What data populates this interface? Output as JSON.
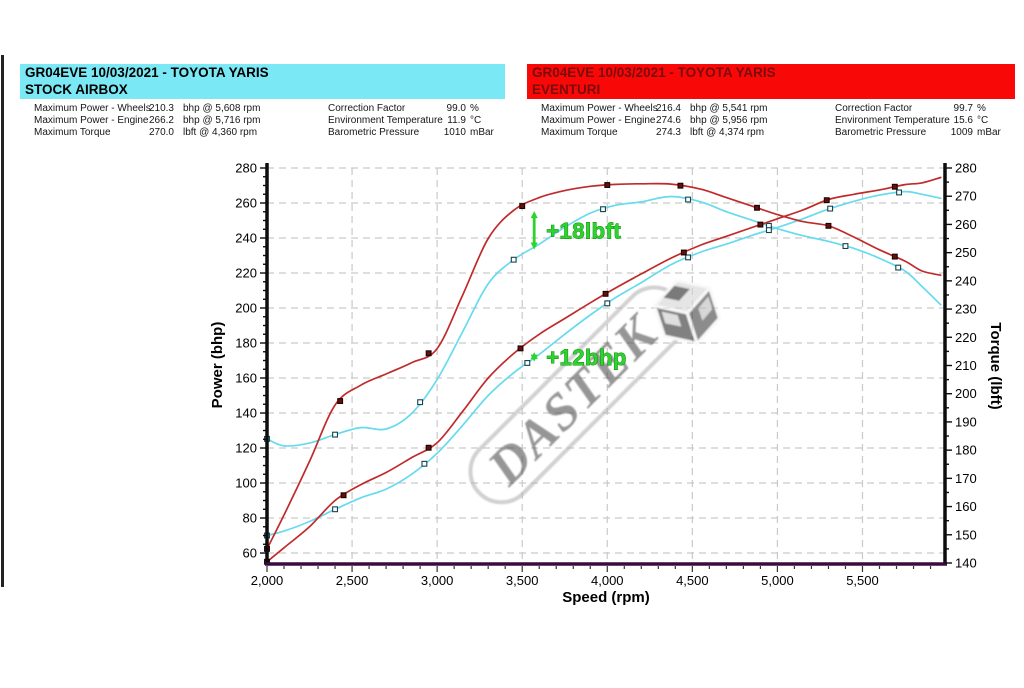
{
  "left_panel": {
    "title_line1": "GR04EVE 10/03/2021 - TOYOTA YARIS",
    "title_line2": "STOCK AIRBOX",
    "header_bg": "#7be8f5",
    "stats": [
      {
        "label": "Maximum Power - Wheels",
        "value": "210.3",
        "unit": "bhp @ 5,608 rpm"
      },
      {
        "label": "Maximum Power - Engine",
        "value": "266.2",
        "unit": "bhp @ 5,716 rpm"
      },
      {
        "label": "Maximum Torque",
        "value": "270.0",
        "unit": "lbft @ 4,360 rpm"
      }
    ],
    "env": [
      {
        "label": "Correction Factor",
        "value": "99.0",
        "unit": "%"
      },
      {
        "label": "Environment Temperature",
        "value": "11.9",
        "unit": "°C"
      },
      {
        "label": "Barometric Pressure",
        "value": "1010",
        "unit": "mBar"
      }
    ]
  },
  "right_panel": {
    "title_line1": "GR04EVE 10/03/2021 - TOYOTA YARIS",
    "title_line2": "EVENTURI",
    "header_bg": "#f90808",
    "stats": [
      {
        "label": "Maximum Power - Wheels",
        "value": "216.4",
        "unit": "bhp @ 5,541 rpm"
      },
      {
        "label": "Maximum Power - Engine",
        "value": "274.6",
        "unit": "bhp @ 5,956 rpm"
      },
      {
        "label": "Maximum Torque",
        "value": "274.3",
        "unit": "lbft @ 4,374 rpm"
      }
    ],
    "env": [
      {
        "label": "Correction Factor",
        "value": "99.7",
        "unit": "%"
      },
      {
        "label": "Environment Temperature",
        "value": "15.6",
        "unit": "°C"
      },
      {
        "label": "Barometric Pressure",
        "value": "1009",
        "unit": "mBar"
      }
    ]
  },
  "chart_data": {
    "type": "line",
    "xlabel": "Speed (rpm)",
    "ylabel_left": "Power (bhp)",
    "ylabel_right": "Torque (lbft)",
    "x_range": [
      2000,
      5985
    ],
    "power_axis": {
      "min": 54.3,
      "max": 280,
      "tick_min": 60,
      "tick_max": 280,
      "major": 20,
      "minor": 5
    },
    "torque_axis": {
      "min": 140,
      "max": 280,
      "major": 10,
      "minor": 5
    },
    "x_ticks": {
      "label_min": 2000,
      "label_max": 5500,
      "major": 500,
      "minor": 100
    },
    "grid": true,
    "colors": {
      "stock": "#66dbee",
      "eventuri": "#c12a2b",
      "grid": "#c9c9c9",
      "axis": "#0d0d0d",
      "bottom_axis": "#3a0b3f",
      "annotation_green": "#2fd22f",
      "annotation_outline": "#108a10"
    },
    "rpm": [
      2000,
      2100,
      2250,
      2400,
      2550,
      2700,
      2850,
      3000,
      3150,
      3300,
      3450,
      3600,
      3750,
      3900,
      4050,
      4200,
      4375,
      4550,
      4700,
      4850,
      5000,
      5150,
      5300,
      5450,
      5600,
      5750,
      5850,
      5960
    ],
    "series": [
      {
        "name": "STOCK Torque",
        "axis": "torque",
        "color": "#66dbee",
        "marker_fill": "#ffffff",
        "marker_stroke": "#14444c",
        "values": [
          184,
          181.5,
          182.5,
          185.5,
          188,
          187.5,
          193,
          205,
          222,
          239,
          247.5,
          253,
          259,
          264,
          266.8,
          268,
          269.9,
          268,
          264.5,
          261.5,
          258.5,
          256,
          254,
          251.5,
          248,
          243.5,
          238,
          231.5
        ],
        "marker_rpm": [
          2000,
          2400,
          2900,
          3450,
          3975,
          4475,
          4950,
          5400,
          5710
        ]
      },
      {
        "name": "STOCK Power",
        "axis": "power",
        "color": "#66dbee",
        "marker_fill": "#ffffff",
        "marker_stroke": "#14444c",
        "values": [
          70,
          72.5,
          78,
          85,
          91.5,
          96.5,
          105,
          117,
          133,
          150,
          163,
          173.5,
          185,
          196,
          206,
          214.5,
          224.8,
          232,
          236.5,
          241.5,
          246,
          251,
          256.5,
          261,
          264.5,
          266.5,
          265,
          262.7
        ],
        "marker_rpm": [
          2000,
          2400,
          2925,
          3530,
          4000,
          4475,
          4950,
          5310,
          5715
        ]
      },
      {
        "name": "EVENTURI Torque",
        "axis": "torque",
        "color": "#c12a2b",
        "marker_fill": "#64100f",
        "marker_stroke": "#1d0202",
        "values": [
          145,
          157,
          176,
          196,
          203,
          207,
          211,
          216,
          235,
          255,
          265,
          269.5,
          272,
          273.5,
          274.2,
          274.4,
          274.3,
          272.5,
          269.5,
          266.5,
          263.5,
          261,
          259.5,
          255.5,
          251,
          247,
          243.5,
          242
        ],
        "marker_rpm": [
          2000,
          2430,
          2950,
          3500,
          4000,
          4430,
          4880,
          5300,
          5690
        ]
      },
      {
        "name": "EVENTURI Power",
        "axis": "power",
        "color": "#c12a2b",
        "marker_fill": "#64100f",
        "marker_stroke": "#1d0202",
        "values": [
          55,
          63,
          75,
          90,
          99,
          106,
          114.5,
          123,
          141,
          160,
          174,
          185,
          194,
          203,
          211.5,
          219.5,
          228.5,
          236,
          241,
          246,
          251,
          256,
          262,
          265,
          267.5,
          270.5,
          271.5,
          274.6
        ],
        "marker_rpm": [
          2000,
          2450,
          2950,
          3490,
          3990,
          4450,
          4900,
          5290,
          5690
        ]
      }
    ],
    "annotations": [
      {
        "text": "+18lbft",
        "rpm": 3500,
        "from_series": 2,
        "to_series": 0,
        "dashed": false
      },
      {
        "text": "+12bhp",
        "rpm": 3500,
        "from_series": 3,
        "to_series": 1,
        "dashed": true
      }
    ],
    "watermark": {
      "text": "DASTEK",
      "angle": -45
    }
  }
}
